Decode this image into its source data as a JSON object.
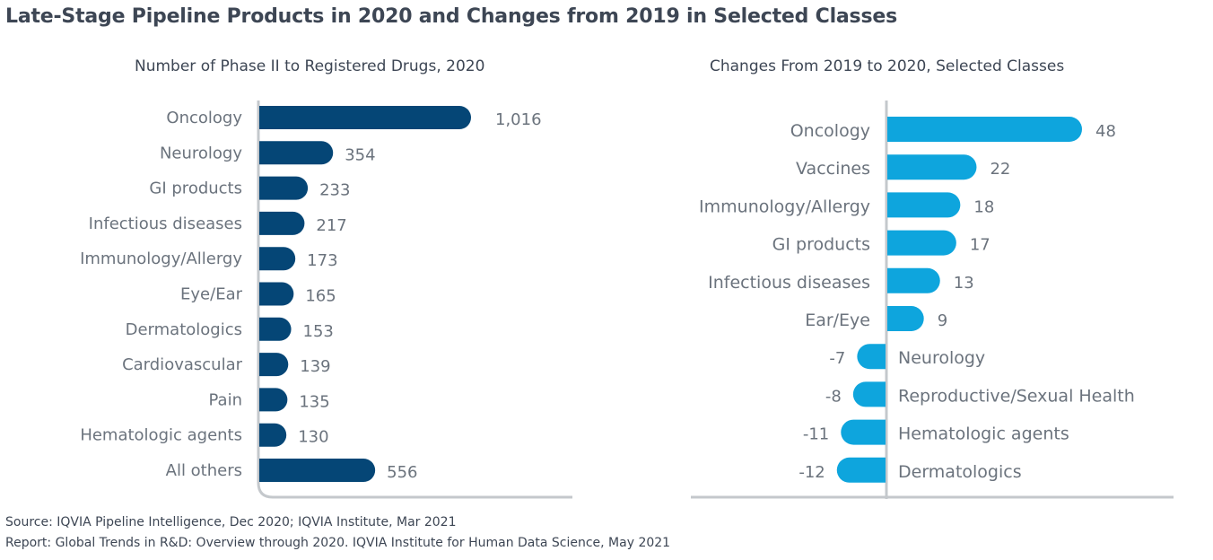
{
  "title": "Late-Stage Pipeline Products in 2020 and Changes from 2019 in Selected Classes",
  "colors": {
    "left_bar": "#054676",
    "right_bar": "#0ea5dd",
    "axis": "#c4c8cc",
    "label": "#6b737d"
  },
  "chart_data": [
    {
      "type": "bar",
      "orientation": "horizontal",
      "title": "Number of Phase II to Registered Drugs, 2020",
      "categories": [
        "Oncology",
        "Neurology",
        "GI products",
        "Infectious diseases",
        "Immunology/Allergy",
        "Eye/Ear",
        "Dermatologics",
        "Cardiovascular",
        "Pain",
        "Hematologic agents",
        "All others"
      ],
      "values": [
        1016,
        354,
        233,
        217,
        173,
        165,
        153,
        139,
        135,
        130,
        556
      ],
      "value_labels": [
        "1,016",
        "354",
        "233",
        "217",
        "173",
        "165",
        "153",
        "139",
        "135",
        "130",
        "556"
      ],
      "xlim": [
        0,
        1016
      ]
    },
    {
      "type": "bar",
      "orientation": "horizontal",
      "title": "Changes From 2019 to 2020, Selected Classes",
      "categories": [
        "Oncology",
        "Vaccines",
        "Immunology/Allergy",
        "GI products",
        "Infectious diseases",
        "Ear/Eye",
        "Neurology",
        "Reproductive/Sexual Health",
        "Hematologic agents",
        "Dermatologics"
      ],
      "values": [
        48,
        22,
        18,
        17,
        13,
        9,
        -7,
        -8,
        -11,
        -12
      ],
      "value_labels": [
        "48",
        "22",
        "18",
        "17",
        "13",
        "9",
        "-7",
        "-8",
        "-11",
        "-12"
      ],
      "xlim": [
        -12,
        48
      ]
    }
  ],
  "footer": {
    "source": "Source: IQVIA Pipeline Intelligence, Dec 2020; IQVIA Institute, Mar 2021",
    "report": "Report: Global Trends in R&D: Overview through 2020. IQVIA Institute for Human Data Science, May 2021"
  }
}
